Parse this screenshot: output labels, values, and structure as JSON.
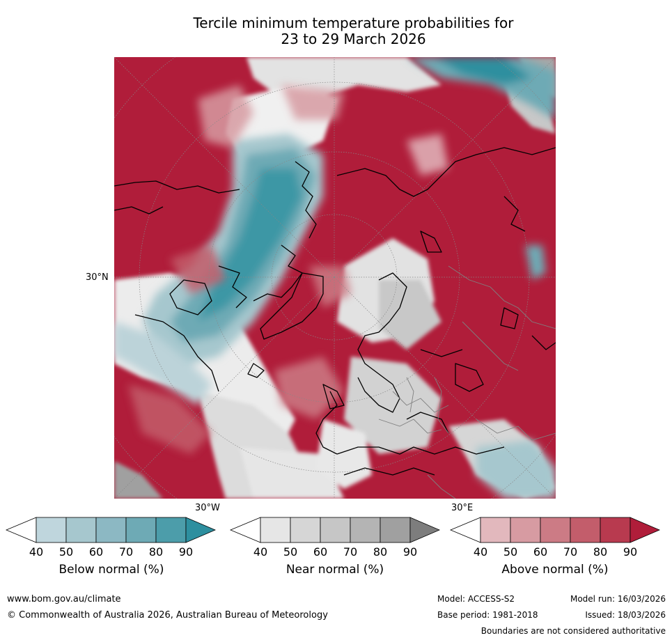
{
  "title_line1": "Tercile minimum temperature probabilities for",
  "title_line2": "23 to 29 March 2026",
  "map": {
    "lat_label": "30°N",
    "lon_label_left": "30°W",
    "lon_label_right": "30°E"
  },
  "legend": {
    "below": {
      "title": "Below normal (%)",
      "ticks": [
        "40",
        "50",
        "60",
        "70",
        "80",
        "90"
      ],
      "colors": [
        "#ffffff",
        "#bfd6dd",
        "#a6c7ce",
        "#8cb8c3",
        "#6eaab5",
        "#4c9daa",
        "#2d8f9f"
      ]
    },
    "near": {
      "title": "Near normal (%)",
      "ticks": [
        "40",
        "50",
        "60",
        "70",
        "80",
        "90"
      ],
      "colors": [
        "#ffffff",
        "#e6e6e6",
        "#d6d6d6",
        "#c6c6c6",
        "#b4b4b4",
        "#a0a0a0",
        "#7d7d7d"
      ]
    },
    "above": {
      "title": "Above normal (%)",
      "ticks": [
        "40",
        "50",
        "60",
        "70",
        "80",
        "90"
      ],
      "colors": [
        "#ffffff",
        "#e2b8bd",
        "#d79ba2",
        "#cc7b85",
        "#c35d6b",
        "#b83a4f",
        "#b01d3a"
      ]
    }
  },
  "footer": {
    "website": "www.bom.gov.au/climate",
    "copyright": "© Commonwealth of Australia 2026, Australian Bureau of Meteorology",
    "model": "Model: ACCESS-S2",
    "base_period": "Base period: 1981-2018",
    "model_run": "Model run: 16/03/2026",
    "issued": "Issued: 18/03/2026",
    "disclaimer": "Boundaries are not considered authoritative"
  }
}
